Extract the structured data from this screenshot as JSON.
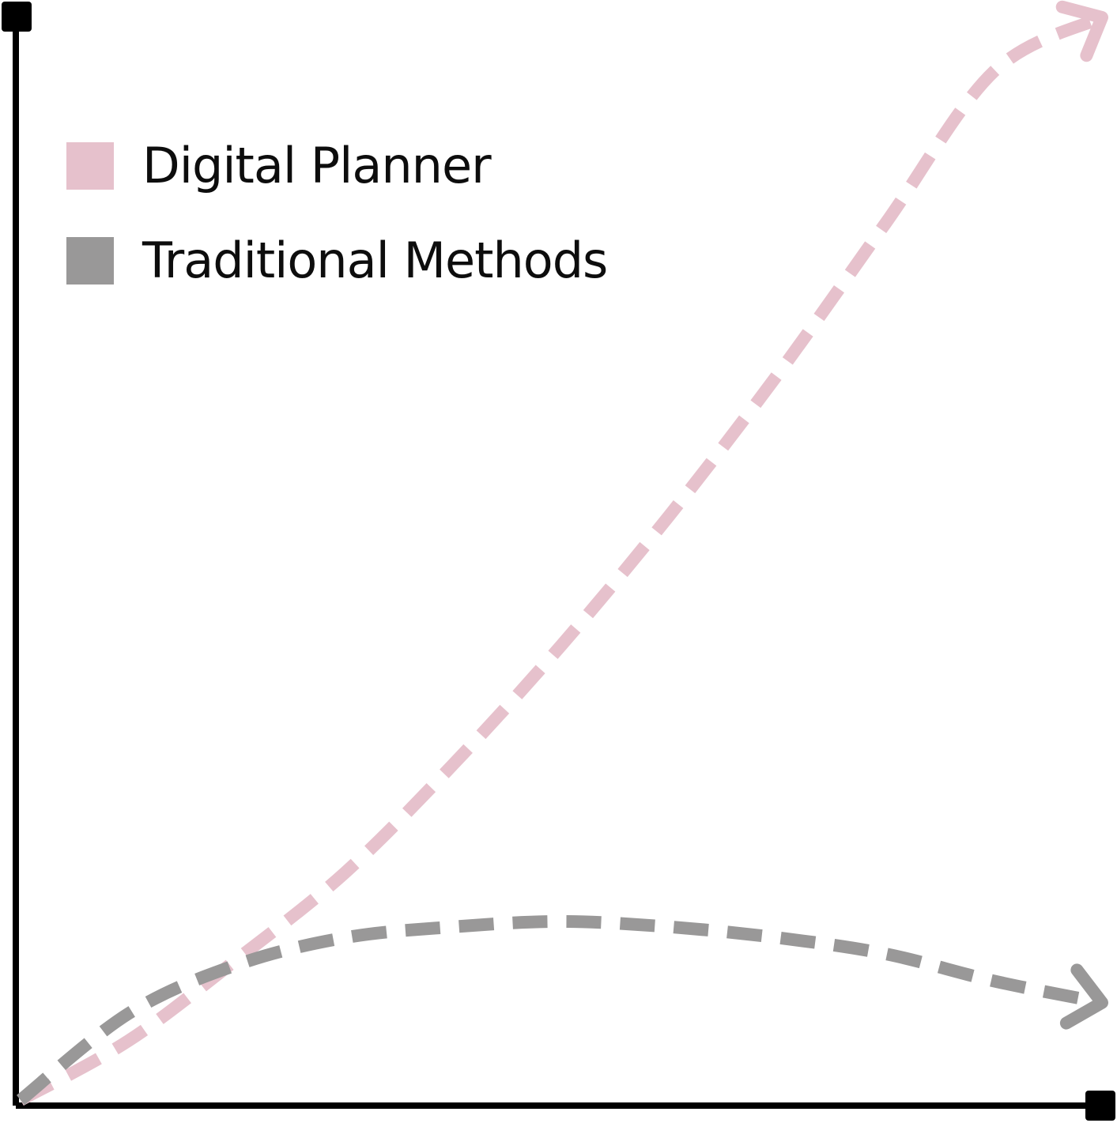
{
  "chart_data": {
    "type": "line",
    "title": "",
    "xlabel": "",
    "ylabel": "",
    "grid": false,
    "legend_position": "top-left",
    "x": [
      0,
      1,
      2,
      3,
      4,
      5,
      6,
      7,
      8,
      9,
      10
    ],
    "xlim": [
      0,
      10
    ],
    "ylim": [
      0,
      10
    ],
    "series": [
      {
        "name": "Digital Planner",
        "color": "#e6c1cc",
        "style": "dashed-arrow",
        "values": [
          0,
          0.55,
          1.3,
          2.1,
          3.1,
          4.2,
          5.4,
          6.7,
          8.1,
          9.5,
          10
        ]
      },
      {
        "name": "Traditional Methods",
        "color": "#999898",
        "style": "dashed-arrow",
        "values": [
          0,
          0.8,
          1.25,
          1.5,
          1.6,
          1.65,
          1.6,
          1.5,
          1.35,
          1.1,
          0.9
        ]
      }
    ],
    "axis_color": "#000000"
  }
}
